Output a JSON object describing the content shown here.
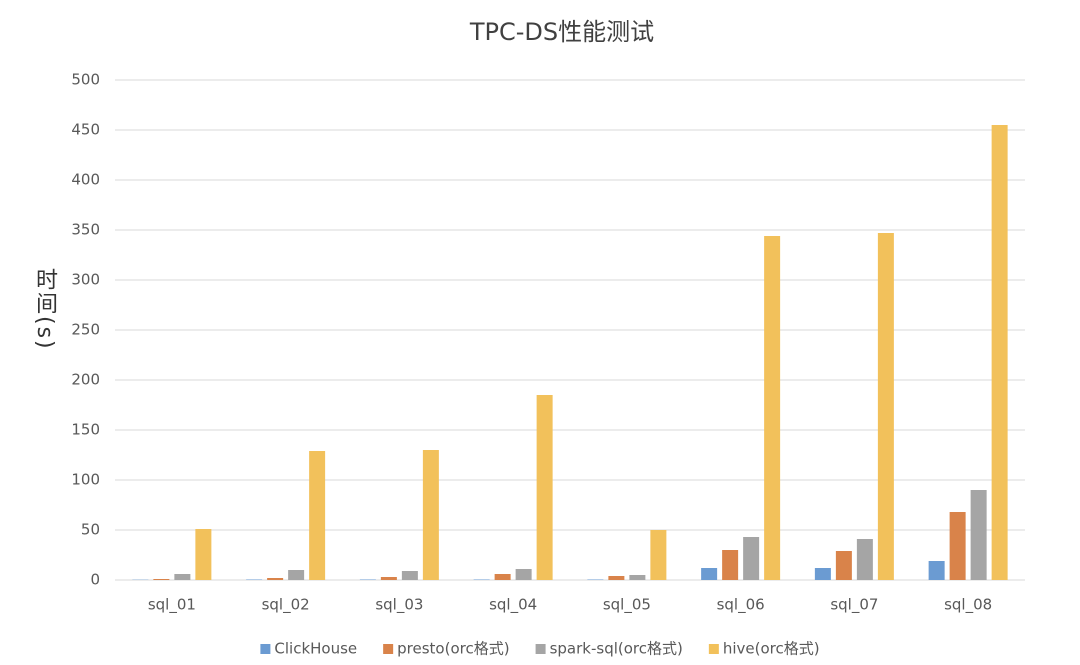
{
  "chart_data": {
    "type": "bar",
    "title": "TPC-DS性能测试",
    "y_label": "时间(s)",
    "categories": [
      "sql_01",
      "sql_02",
      "sql_03",
      "sql_04",
      "sql_05",
      "sql_06",
      "sql_07",
      "sql_08"
    ],
    "series": [
      {
        "name": "ClickHouse",
        "color": "#6b9bd2",
        "values": [
          0.3,
          0.5,
          0.5,
          0.5,
          0.5,
          12,
          12,
          19
        ]
      },
      {
        "name": "presto(orc格式)",
        "color": "#d9834a",
        "values": [
          1,
          2,
          3,
          6,
          4,
          30,
          29,
          68
        ]
      },
      {
        "name": "spark-sql(orc格式)",
        "color": "#a5a5a5",
        "values": [
          6,
          10,
          9,
          11,
          5,
          43,
          41,
          90
        ]
      },
      {
        "name": "hive(orc格式)",
        "color": "#f2c15b",
        "values": [
          51,
          129,
          130,
          185,
          50,
          344,
          347,
          455
        ]
      }
    ],
    "ylim": [
      0,
      500
    ],
    "yticks": [
      0,
      50,
      100,
      150,
      200,
      250,
      300,
      350,
      400,
      450,
      500
    ],
    "grid": true,
    "legend": "bottom"
  }
}
